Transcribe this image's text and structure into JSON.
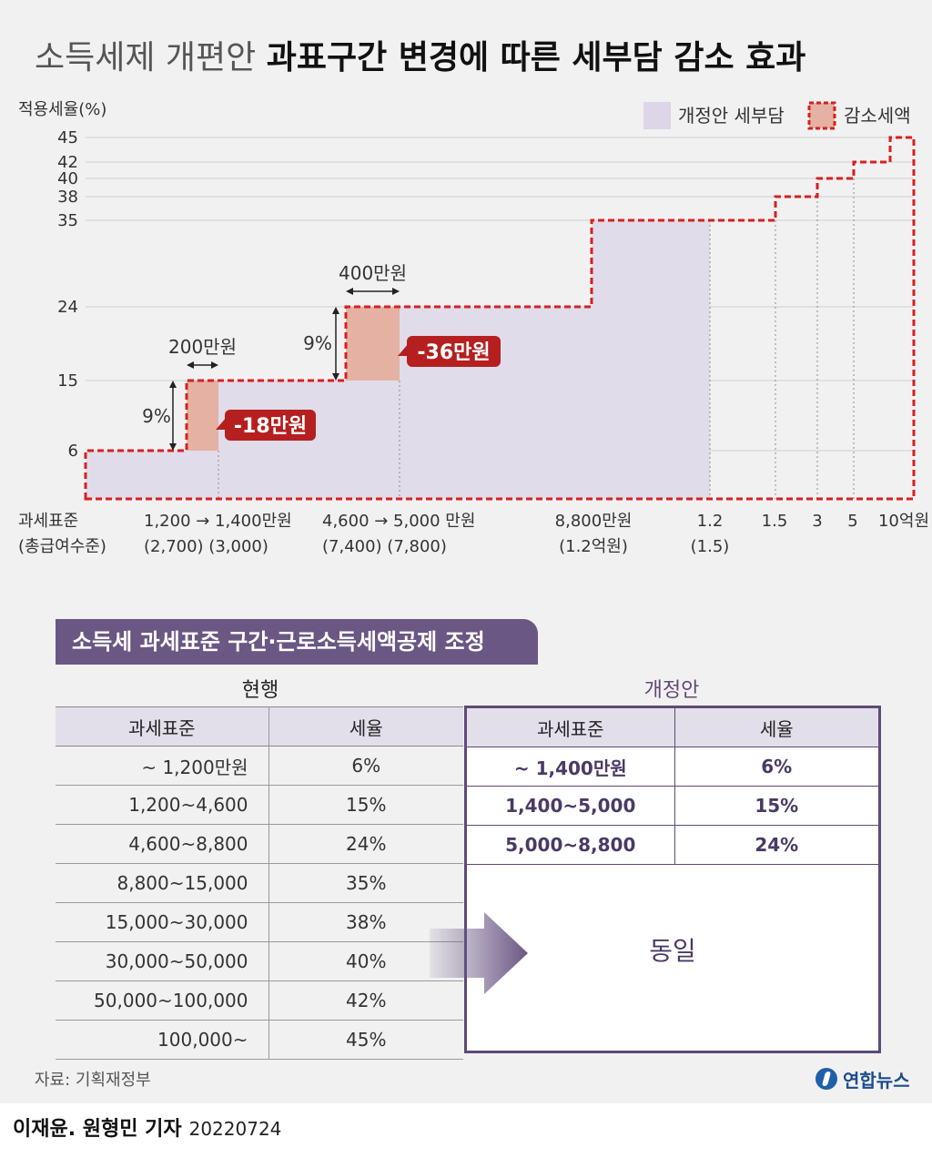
{
  "title": {
    "light": "소득세제 개편안",
    "bold": "과표구간 변경에 따른 세부담 감소 효과"
  },
  "chart_data": {
    "type": "area",
    "ylabel": "적용세율(%)",
    "y_ticks": [
      "6",
      "15",
      "24",
      "35",
      "38",
      "40",
      "42",
      "45"
    ],
    "legend": {
      "placement": "top-right",
      "items": [
        "개정안 세부담",
        "감소세액"
      ]
    },
    "legend_colors": [
      "#dcd6e8",
      "#e4b1a2"
    ],
    "x_ticks": [
      {
        "line1": "1,200 → 1,400만원",
        "line2": "(2,700)  (3,000)"
      },
      {
        "line1": "4,600 → 5,000 만원",
        "line2": "(7,400)  (7,800)"
      },
      {
        "line1": "8,800만원",
        "line2": "(1.2억원)"
      },
      {
        "line1": "1.2",
        "line2": "(1.5)"
      },
      {
        "line1": "1.5",
        "line2": ""
      },
      {
        "line1": "3",
        "line2": ""
      },
      {
        "line1": "5",
        "line2": ""
      },
      {
        "line1": "10억원",
        "line2": ""
      }
    ],
    "x_caption": {
      "line1": "과세표준",
      "line2": "(총급여수준)"
    },
    "current_steps": [
      {
        "upper": "1,200만원",
        "rate": 6
      },
      {
        "upper": "4,600",
        "rate": 15
      },
      {
        "upper": "8,800",
        "rate": 24
      },
      {
        "upper": "1.5억",
        "rate": 35
      },
      {
        "upper": "3억",
        "rate": 38
      },
      {
        "upper": "5억",
        "rate": 40
      },
      {
        "upper": "10억원",
        "rate": 42
      },
      {
        "upper": "",
        "rate": 45
      }
    ],
    "reform_area_steps": [
      {
        "upper": "1,400만원",
        "rate": 6
      },
      {
        "upper": "5,000",
        "rate": 15
      },
      {
        "upper": "8,800",
        "rate": 24
      },
      {
        "upper": "1.2",
        "rate": 35
      }
    ],
    "annotations": [
      {
        "width_label": "200만원",
        "rate_gap_label": "9%",
        "saving_label": "-18만원"
      },
      {
        "width_label": "400만원",
        "rate_gap_label": "9%",
        "saving_label": "-36만원"
      }
    ],
    "colors": {
      "reform_fill": "#e1dcea",
      "saving_fill": "#e4b1a2",
      "current_line": "#d82020",
      "callout": "#b51f1f"
    }
  },
  "section_title": "소득세 과세표준 구간·근로소득세액공제 조정",
  "current": {
    "heading": "현행",
    "columns": [
      "과세표준",
      "세율"
    ],
    "rows": [
      [
        "~ 1,200만원",
        "6%"
      ],
      [
        "1,200~4,600",
        "15%"
      ],
      [
        "4,600~8,800",
        "24%"
      ],
      [
        "8,800~15,000",
        "35%"
      ],
      [
        "15,000~30,000",
        "38%"
      ],
      [
        "30,000~50,000",
        "40%"
      ],
      [
        "50,000~100,000",
        "42%"
      ],
      [
        "100,000~",
        "45%"
      ]
    ]
  },
  "reform": {
    "heading": "개정안",
    "columns": [
      "과세표준",
      "세율"
    ],
    "rows": [
      [
        "~ 1,400만원",
        "6%"
      ],
      [
        "1,400~5,000",
        "15%"
      ],
      [
        "5,000~8,800",
        "24%"
      ]
    ],
    "same_label": "동일"
  },
  "source": "자료: 기획재정부",
  "brand": "연합뉴스",
  "byline": {
    "names": "이재윤. 원형민 기자",
    "date": "20220724"
  }
}
